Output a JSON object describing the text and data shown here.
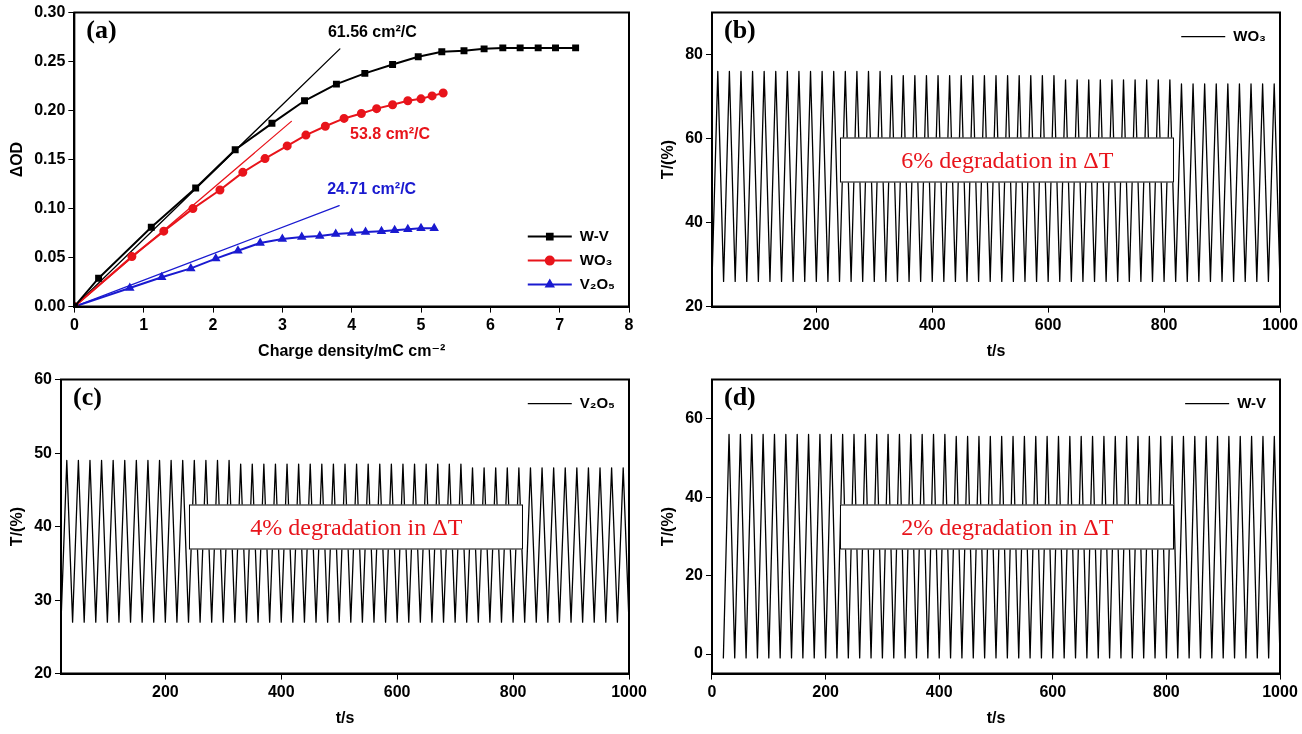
{
  "chart_data": [
    {
      "type": "line",
      "xlabel": "Charge density/mC cm⁻²",
      "ylabel": "ΔOD",
      "xlim": [
        0,
        8
      ],
      "xticks": [
        0,
        1,
        2,
        3,
        4,
        5,
        6,
        7,
        8
      ],
      "ylim": [
        0,
        0.3
      ],
      "yticks": [
        {
          "value": 0,
          "label": "0.00"
        },
        {
          "value": 0.05,
          "label": "0.05"
        },
        {
          "value": 0.1,
          "label": "0.10"
        },
        {
          "value": 0.15,
          "label": "0.15"
        },
        {
          "value": 0.2,
          "label": "0.20"
        },
        {
          "value": 0.25,
          "label": "0.25"
        },
        {
          "value": 0.3,
          "label": "0.30"
        }
      ],
      "legend": "bottom right",
      "annotations": [
        "(a)",
        {
          "text": "61.56 cm²/C",
          "x": 3.83,
          "y": 0.263
        },
        {
          "text": "53.8 cm²/C",
          "x": 3.89,
          "y": 0.192
        },
        {
          "text": "24.71 cm²/C",
          "x": 3.82,
          "y": 0.103
        }
      ],
      "series": [
        {
          "name": "W-V",
          "type": "line",
          "marker": "square",
          "color": "#000000",
          "x": [
            0,
            0.35,
            1.11,
            1.75,
            2.32,
            2.85,
            3.32,
            3.78,
            4.19,
            4.59,
            4.96,
            5.3,
            5.62,
            5.91,
            6.18,
            6.43,
            6.69,
            6.94,
            7.23
          ],
          "values": [
            0,
            0.029,
            0.081,
            0.121,
            0.16,
            0.187,
            0.21,
            0.227,
            0.238,
            0.247,
            0.255,
            0.26,
            0.261,
            0.263,
            0.264,
            0.264,
            0.264,
            0.264,
            0.264
          ]
        },
        {
          "name": "WO₃",
          "type": "line",
          "marker": "circle",
          "color": "#e8141b",
          "x": [
            0,
            0.83,
            1.29,
            1.71,
            2.1,
            2.43,
            2.75,
            3.07,
            3.34,
            3.62,
            3.89,
            4.14,
            4.36,
            4.59,
            4.81,
            5.0,
            5.16,
            5.32
          ],
          "values": [
            0,
            0.051,
            0.077,
            0.1,
            0.119,
            0.137,
            0.151,
            0.164,
            0.175,
            0.184,
            0.192,
            0.197,
            0.202,
            0.206,
            0.21,
            0.212,
            0.215,
            0.218
          ]
        },
        {
          "name": "V₂O₅",
          "type": "line",
          "marker": "triangle",
          "color": "#1a1ad0",
          "x": [
            0,
            0.8,
            1.26,
            1.68,
            2.04,
            2.36,
            2.68,
            3.0,
            3.28,
            3.54,
            3.77,
            4.0,
            4.2,
            4.43,
            4.62,
            4.81,
            5.0,
            5.19
          ],
          "values": [
            0,
            0.019,
            0.03,
            0.039,
            0.049,
            0.057,
            0.065,
            0.069,
            0.071,
            0.072,
            0.074,
            0.075,
            0.076,
            0.077,
            0.078,
            0.079,
            0.08,
            0.08
          ]
        },
        {
          "type": "line",
          "marker": "none",
          "color": "#000000",
          "x": [
            0,
            3.83
          ],
          "values": [
            0,
            0.263
          ]
        },
        {
          "type": "line",
          "marker": "none",
          "color": "#e8141b",
          "x": [
            0,
            3.13
          ],
          "values": [
            0,
            0.189
          ]
        },
        {
          "type": "line",
          "marker": "none",
          "color": "#1a1ad0",
          "x": [
            0,
            3.82
          ],
          "values": [
            0,
            0.103
          ]
        }
      ]
    },
    {
      "type": "line",
      "xlabel": "t/s",
      "ylabel": "T/(%)",
      "xlim": [
        20,
        1000
      ],
      "xticks": [
        200,
        400,
        600,
        800,
        1000
      ],
      "ylim": [
        20,
        90
      ],
      "yticks": [
        20,
        40,
        60,
        80
      ],
      "legend": "top right",
      "annotations": [
        "(b)",
        "6% degradation in ΔT"
      ],
      "series": [
        {
          "name": "WO₃",
          "type": "line",
          "marker": "none",
          "color": "#000000",
          "x": [
            20,
            30,
            40,
            50,
            60,
            70,
            80,
            90,
            100,
            110,
            120,
            130,
            140,
            150,
            160,
            170,
            180,
            190,
            200,
            210,
            220,
            230,
            240,
            250,
            260,
            270,
            280,
            290,
            300,
            310,
            320,
            330,
            340,
            350,
            360,
            370,
            380,
            390,
            400,
            410,
            420,
            430,
            440,
            450,
            460,
            470,
            480,
            490,
            500,
            510,
            520,
            530,
            540,
            550,
            560,
            570,
            580,
            590,
            600,
            610,
            620,
            630,
            640,
            650,
            660,
            670,
            680,
            690,
            700,
            710,
            720,
            730,
            740,
            750,
            760,
            770,
            780,
            790,
            800,
            810,
            820,
            830,
            840,
            850,
            860,
            870,
            880,
            890,
            900,
            910,
            920,
            930,
            940,
            950,
            960,
            970,
            980,
            990,
            1000
          ],
          "values": [
            26,
            76,
            26,
            76,
            26,
            76,
            26,
            76,
            26,
            76,
            26,
            76,
            26,
            76,
            26,
            76,
            26,
            76,
            26,
            76,
            26,
            76,
            26,
            76,
            26,
            76,
            26,
            76,
            26,
            76,
            26,
            75,
            26,
            75,
            26,
            75,
            26,
            75,
            26,
            75,
            26,
            75,
            26,
            75,
            26,
            75,
            26,
            75,
            26,
            75,
            26,
            75,
            26,
            75,
            26,
            75,
            26,
            75,
            26,
            75,
            26,
            74,
            26,
            74,
            26,
            74,
            26,
            74,
            26,
            74,
            26,
            74,
            26,
            74,
            26,
            74,
            26,
            74,
            26,
            74,
            26,
            73,
            26,
            73,
            26,
            73,
            26,
            73,
            26,
            73,
            26,
            73,
            26,
            73,
            26,
            73,
            26,
            73,
            26
          ]
        }
      ]
    },
    {
      "type": "line",
      "xlabel": "t/s",
      "ylabel": "T/(%)",
      "xlim": [
        20,
        1000
      ],
      "xticks": [
        200,
        400,
        600,
        800,
        1000
      ],
      "ylim": [
        20,
        60
      ],
      "yticks": [
        20,
        30,
        40,
        50,
        60
      ],
      "legend": "top right",
      "annotations": [
        "(c)",
        "4% degradation in ΔT"
      ],
      "series": [
        {
          "name": "V₂O₅",
          "type": "line",
          "marker": "none",
          "color": "#000000",
          "x": [
            20,
            30,
            40,
            50,
            60,
            70,
            80,
            90,
            100,
            110,
            120,
            130,
            140,
            150,
            160,
            170,
            180,
            190,
            200,
            210,
            220,
            230,
            240,
            250,
            260,
            270,
            280,
            290,
            300,
            310,
            320,
            330,
            340,
            350,
            360,
            370,
            380,
            390,
            400,
            410,
            420,
            430,
            440,
            450,
            460,
            470,
            480,
            490,
            500,
            510,
            520,
            530,
            540,
            550,
            560,
            570,
            580,
            590,
            600,
            610,
            620,
            630,
            640,
            650,
            660,
            670,
            680,
            690,
            700,
            710,
            720,
            730,
            740,
            750,
            760,
            770,
            780,
            790,
            800,
            810,
            820,
            830,
            840,
            850,
            860,
            870,
            880,
            890,
            900,
            910,
            920,
            930,
            940,
            950,
            960,
            970,
            980,
            990,
            1000
          ],
          "values": [
            27,
            49,
            27,
            49,
            27,
            49,
            27,
            49,
            27,
            49,
            27,
            49,
            27,
            49,
            27,
            49,
            27,
            49,
            27,
            49,
            27,
            49,
            27,
            49,
            27,
            49,
            27,
            49,
            27,
            49,
            27,
            48.5,
            27,
            48.5,
            27,
            48.5,
            27,
            48.5,
            27,
            48.5,
            27,
            48.5,
            27,
            48.5,
            27,
            48.5,
            27,
            48.5,
            27,
            48.5,
            27,
            48.5,
            27,
            48.5,
            27,
            48.5,
            27,
            48.5,
            27,
            48.5,
            27,
            48.5,
            27,
            48.5,
            27,
            48.5,
            27,
            48.5,
            27,
            48.5,
            27,
            48,
            27,
            48,
            27,
            48,
            27,
            48,
            27,
            48,
            27,
            48,
            27,
            48,
            27,
            48,
            27,
            48,
            27,
            48,
            27,
            48,
            27,
            48,
            27,
            48,
            27,
            48,
            27
          ]
        }
      ]
    },
    {
      "type": "line",
      "xlabel": "t/s",
      "ylabel": "T/(%)",
      "xlim": [
        0,
        1000
      ],
      "xticks": [
        0,
        200,
        400,
        600,
        800,
        1000
      ],
      "ylim": [
        -5,
        70
      ],
      "yticks": [
        0,
        20,
        40,
        60
      ],
      "legend": "top right",
      "annotations": [
        "(d)",
        "2% degradation in ΔT"
      ],
      "series": [
        {
          "name": "W-V",
          "type": "line",
          "marker": "none",
          "color": "#000000",
          "x": [
            20,
            30,
            40,
            50,
            60,
            70,
            80,
            90,
            100,
            110,
            120,
            130,
            140,
            150,
            160,
            170,
            180,
            190,
            200,
            210,
            220,
            230,
            240,
            250,
            260,
            270,
            280,
            290,
            300,
            310,
            320,
            330,
            340,
            350,
            360,
            370,
            380,
            390,
            400,
            410,
            420,
            430,
            440,
            450,
            460,
            470,
            480,
            490,
            500,
            510,
            520,
            530,
            540,
            550,
            560,
            570,
            580,
            590,
            600,
            610,
            620,
            630,
            640,
            650,
            660,
            670,
            680,
            690,
            700,
            710,
            720,
            730,
            740,
            750,
            760,
            770,
            780,
            790,
            800,
            810,
            820,
            830,
            840,
            850,
            860,
            870,
            880,
            890,
            900,
            910,
            920,
            930,
            940,
            950,
            960,
            970,
            980,
            990,
            1000
          ],
          "values": [
            -1,
            56,
            -1,
            56,
            -1,
            56,
            -1,
            56,
            -1,
            56,
            -1,
            56,
            -1,
            56,
            -1,
            56,
            -1,
            56,
            -1,
            56,
            -1,
            56,
            -1,
            56,
            -1,
            56,
            -1,
            56,
            -1,
            56,
            -1,
            56,
            -1,
            56,
            -1,
            56,
            -1,
            56,
            -1,
            56,
            -1,
            55.5,
            -1,
            55.5,
            -1,
            55.5,
            -1,
            55.5,
            -1,
            55.5,
            -1,
            55.5,
            -1,
            55.5,
            -1,
            55.5,
            -1,
            55.5,
            -1,
            55.5,
            -1,
            55.5,
            -1,
            55.5,
            -1,
            55.5,
            -1,
            55.5,
            -1,
            55.5,
            -1,
            55.5,
            -1,
            55.5,
            -1,
            55.5,
            -1,
            55.5,
            -1,
            55.5,
            -1,
            55.5,
            -1,
            55.5,
            -1,
            55.5,
            -1,
            55.5,
            -1,
            55.5,
            -1,
            55.5,
            -1,
            55.5,
            -1,
            55.5,
            -1,
            55.5,
            -1
          ]
        }
      ]
    }
  ]
}
